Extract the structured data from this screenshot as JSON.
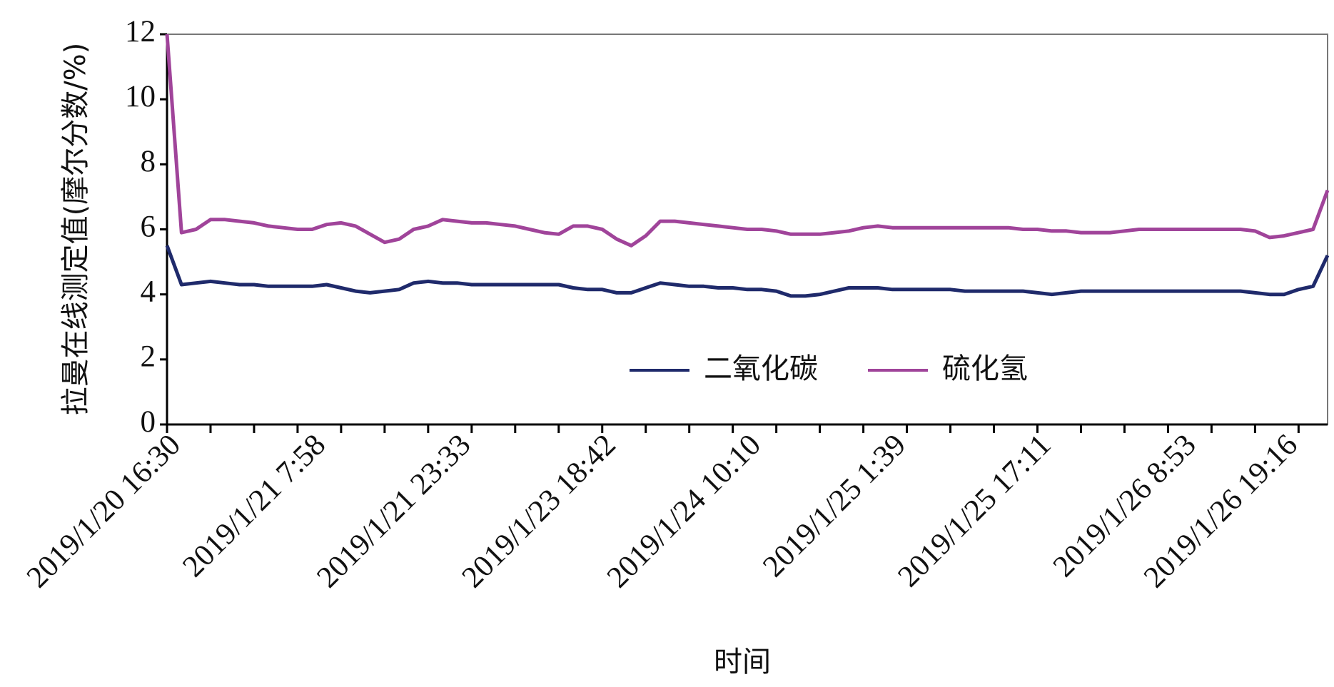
{
  "chart_data": {
    "type": "line",
    "ylabel": "拉曼在线测定值(摩尔分数/%)",
    "xlabel": "时间",
    "categories": [
      "2019/1/20 16:30",
      null,
      null,
      null,
      null,
      null,
      null,
      null,
      null,
      null,
      "2019/1/21 7:58",
      null,
      null,
      null,
      null,
      null,
      null,
      null,
      null,
      null,
      "2019/1/21 23:33",
      null,
      null,
      null,
      null,
      null,
      null,
      null,
      null,
      null,
      "2019/1/23 18:42",
      null,
      null,
      null,
      null,
      null,
      null,
      null,
      null,
      null,
      "2019/1/24 10:10",
      null,
      null,
      null,
      null,
      null,
      null,
      null,
      null,
      null,
      "2019/1/25 1:39",
      null,
      null,
      null,
      null,
      null,
      null,
      null,
      null,
      null,
      "2019/1/25 17:11",
      null,
      null,
      null,
      null,
      null,
      null,
      null,
      null,
      null,
      "2019/1/26 8:53",
      null,
      null,
      null,
      null,
      null,
      null,
      "2019/1/26 19:16",
      null,
      null,
      null
    ],
    "series": [
      {
        "name": "二氧化碳",
        "color": "#1f2a6b",
        "values": [
          5.5,
          4.3,
          4.35,
          4.4,
          4.35,
          4.3,
          4.3,
          4.25,
          4.25,
          4.25,
          4.25,
          4.3,
          4.2,
          4.1,
          4.05,
          4.1,
          4.15,
          4.35,
          4.4,
          4.35,
          4.35,
          4.3,
          4.3,
          4.3,
          4.3,
          4.3,
          4.3,
          4.3,
          4.2,
          4.15,
          4.15,
          4.05,
          4.05,
          4.2,
          4.35,
          4.3,
          4.25,
          4.25,
          4.2,
          4.2,
          4.15,
          4.15,
          4.1,
          3.95,
          3.95,
          4.0,
          4.1,
          4.2,
          4.2,
          4.2,
          4.15,
          4.15,
          4.15,
          4.15,
          4.15,
          4.1,
          4.1,
          4.1,
          4.1,
          4.1,
          4.05,
          4.0,
          4.05,
          4.1,
          4.1,
          4.1,
          4.1,
          4.1,
          4.1,
          4.1,
          4.1,
          4.1,
          4.1,
          4.1,
          4.1,
          4.05,
          4.0,
          4.0,
          4.15,
          4.25,
          5.2
        ]
      },
      {
        "name": "硫化氢",
        "color": "#a0449a",
        "values": [
          12,
          5.9,
          6.0,
          6.3,
          6.3,
          6.25,
          6.2,
          6.1,
          6.05,
          6.0,
          6.0,
          6.15,
          6.2,
          6.1,
          5.85,
          5.6,
          5.7,
          6.0,
          6.1,
          6.3,
          6.25,
          6.2,
          6.2,
          6.15,
          6.1,
          6.0,
          5.9,
          5.85,
          6.1,
          6.1,
          6.0,
          5.7,
          5.5,
          5.8,
          6.25,
          6.25,
          6.2,
          6.15,
          6.1,
          6.05,
          6.0,
          6.0,
          5.95,
          5.85,
          5.85,
          5.85,
          5.9,
          5.95,
          6.05,
          6.1,
          6.05,
          6.05,
          6.05,
          6.05,
          6.05,
          6.05,
          6.05,
          6.05,
          6.05,
          6.0,
          6.0,
          5.95,
          5.95,
          5.9,
          5.9,
          5.9,
          5.95,
          6.0,
          6.0,
          6.0,
          6.0,
          6.0,
          6.0,
          6.0,
          6.0,
          5.95,
          5.75,
          5.8,
          5.9,
          6.0,
          7.2
        ]
      }
    ],
    "ylim": [
      0,
      12
    ],
    "yticks": [
      0,
      2,
      4,
      6,
      8,
      10,
      12
    ],
    "legend": "center"
  }
}
